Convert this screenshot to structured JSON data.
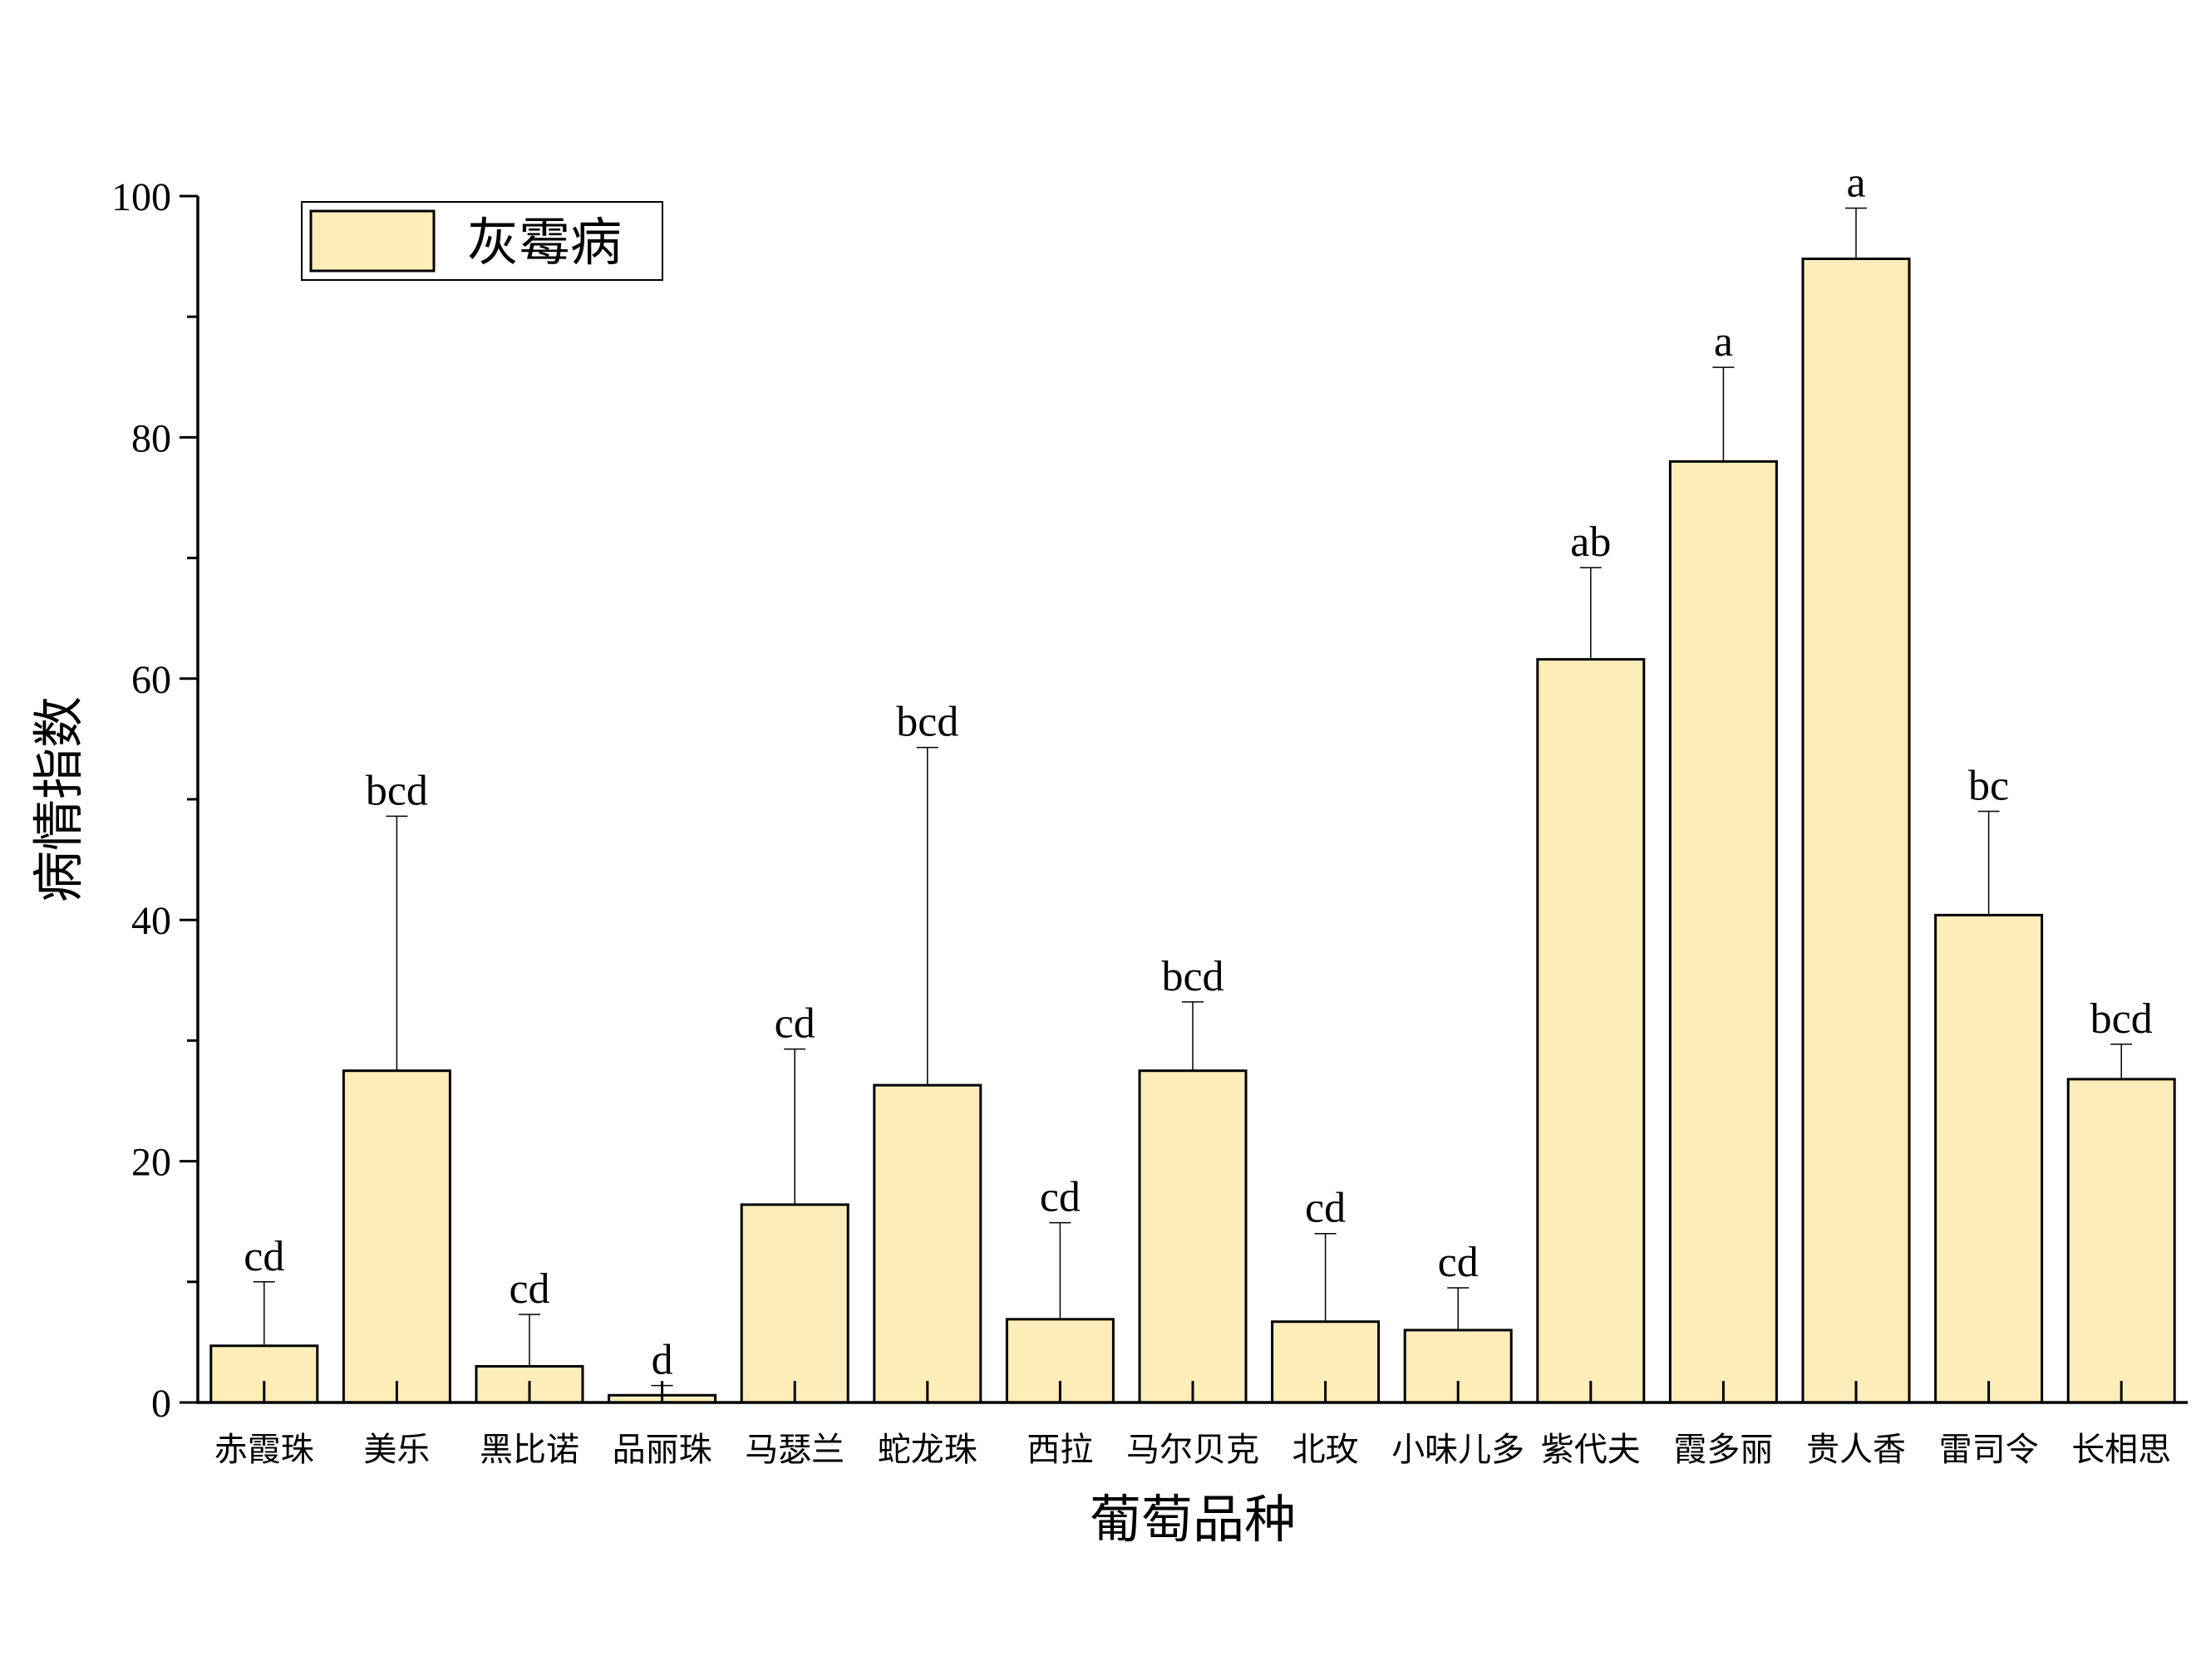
{
  "chart_data": {
    "type": "bar",
    "title": "",
    "xlabel": "葡萄品种",
    "ylabel": "病情指数",
    "ylim": [
      0,
      100
    ],
    "yticks": [
      "0",
      "20",
      "40",
      "60",
      "80",
      "100"
    ],
    "grid": false,
    "legend_position": "top-left",
    "categories": [
      "赤霞珠",
      "美乐",
      "黑比诺",
      "品丽珠",
      "马瑟兰",
      "蛇龙珠",
      "西拉",
      "马尔贝克",
      "北玫",
      "小味儿多",
      "紫代夫",
      "霞多丽",
      "贵人香",
      "雷司令",
      "长相思"
    ],
    "series": [
      {
        "name": "灰霉病",
        "color": "#FDEDB8",
        "values": [
          4.7,
          27.5,
          3.0,
          0.6,
          16.4,
          26.3,
          6.9,
          27.5,
          6.7,
          6.0,
          61.6,
          78.0,
          94.8,
          40.4,
          26.8
        ],
        "error_upper": [
          10.0,
          48.6,
          7.3,
          1.4,
          29.3,
          54.3,
          14.9,
          33.2,
          14.0,
          9.5,
          69.2,
          85.8,
          99.0,
          49.0,
          29.7
        ],
        "significance": [
          "cd",
          "bcd",
          "cd",
          "d",
          "cd",
          "bcd",
          "cd",
          "bcd",
          "cd",
          "cd",
          "ab",
          "a",
          "a",
          "bc",
          "bcd"
        ]
      }
    ]
  }
}
